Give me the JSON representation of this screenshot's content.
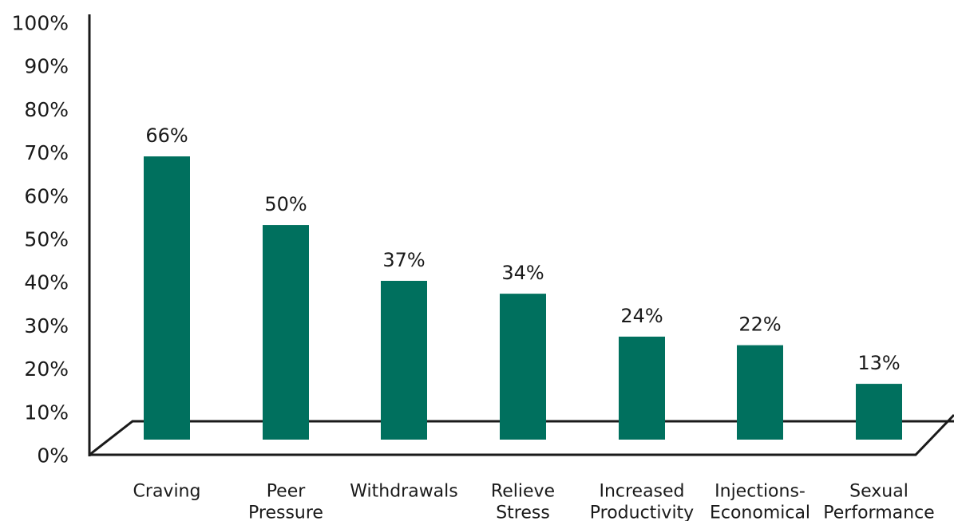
{
  "chart_data": {
    "type": "bar",
    "categories": [
      [
        "Craving"
      ],
      [
        "Peer",
        "Pressure"
      ],
      [
        "Withdrawals"
      ],
      [
        "Relieve",
        "Stress"
      ],
      [
        "Increased",
        "Productivity"
      ],
      [
        "Injections-",
        "Economical"
      ],
      [
        "Sexual",
        "Performance"
      ]
    ],
    "values": [
      66,
      50,
      37,
      34,
      24,
      22,
      13
    ],
    "value_labels": [
      "66%",
      "50%",
      "37%",
      "34%",
      "24%",
      "22%",
      "13%"
    ],
    "ylim": [
      0,
      100
    ],
    "yticks": [
      0,
      10,
      20,
      30,
      40,
      50,
      60,
      70,
      80,
      90,
      100
    ],
    "ytick_labels": [
      "0%",
      "10%",
      "20%",
      "30%",
      "40%",
      "50%",
      "60%",
      "70%",
      "80%",
      "90%",
      "100%"
    ],
    "title": "",
    "xlabel": "",
    "ylabel": "",
    "grid": false,
    "legend": "none",
    "bar_color": "#00705e",
    "axis_color": "#1a1a1a"
  }
}
